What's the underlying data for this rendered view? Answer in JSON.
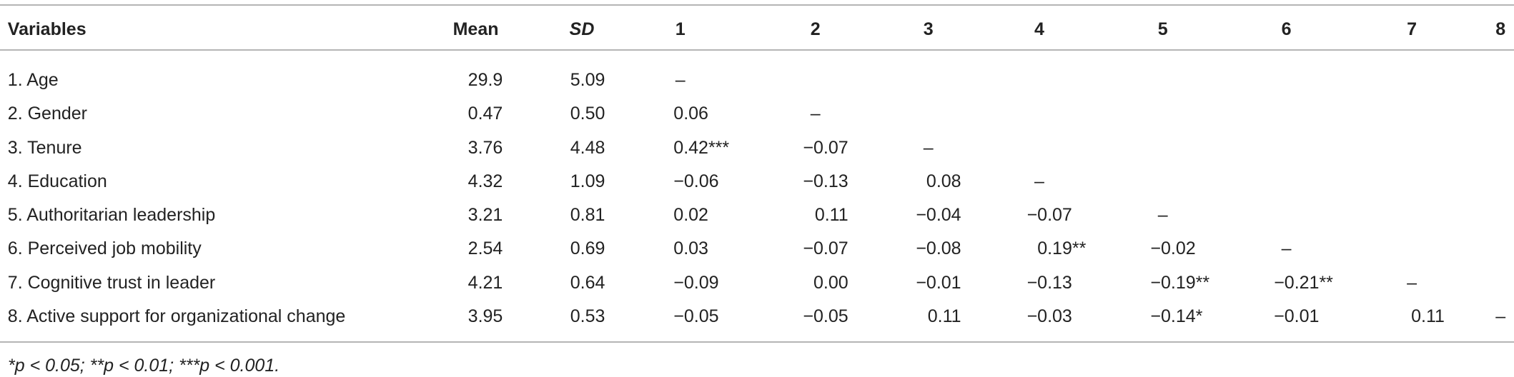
{
  "table": {
    "header": [
      "Variables",
      "Mean",
      "SD",
      "1",
      "2",
      "3",
      "4",
      "5",
      "6",
      "7",
      "8"
    ],
    "rows": [
      [
        "1. Age",
        "29.9",
        "5.09",
        "–",
        "",
        "",
        "",
        "",
        "",
        "",
        ""
      ],
      [
        "2. Gender",
        "0.47",
        "0.50",
        "0.06",
        "–",
        "",
        "",
        "",
        "",
        "",
        ""
      ],
      [
        "3. Tenure",
        "3.76",
        "4.48",
        "0.42***",
        "−0.07",
        "–",
        "",
        "",
        "",
        "",
        ""
      ],
      [
        "4. Education",
        "4.32",
        "1.09",
        "−0.06",
        "−0.13",
        "0.08",
        "–",
        "",
        "",
        "",
        ""
      ],
      [
        "5. Authoritarian leadership",
        "3.21",
        "0.81",
        "0.02",
        "0.11",
        "−0.04",
        "−0.07",
        "–",
        "",
        "",
        ""
      ],
      [
        "6. Perceived job mobility",
        "2.54",
        "0.69",
        "0.03",
        "−0.07",
        "−0.08",
        "0.19**",
        "−0.02",
        "–",
        "",
        ""
      ],
      [
        "7. Cognitive trust in leader",
        "4.21",
        "0.64",
        "−0.09",
        "0.00",
        "−0.01",
        "−0.13",
        "−0.19**",
        "−0.21**",
        "–",
        ""
      ],
      [
        "8. Active support for organizational change",
        "3.95",
        "0.53",
        "−0.05",
        "−0.05",
        "0.11",
        "−0.03",
        "−0.14*",
        "−0.01",
        "0.11",
        "–"
      ]
    ],
    "footnote": "*p < 0.05; **p < 0.01; ***p < 0.001."
  }
}
